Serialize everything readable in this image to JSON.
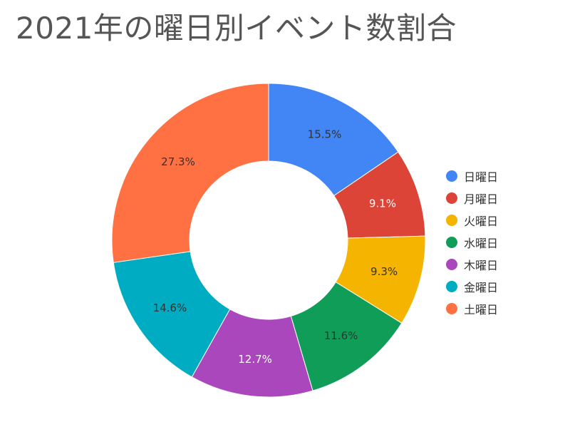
{
  "chart_data": {
    "type": "pie",
    "title": "2021年の曜日別イベント数割合",
    "categories": [
      "日曜日",
      "月曜日",
      "火曜日",
      "水曜日",
      "木曜日",
      "金曜日",
      "土曜日"
    ],
    "values": [
      15.5,
      9.1,
      9.3,
      11.6,
      12.7,
      14.6,
      27.3
    ],
    "labels": [
      "15.5%",
      "9.1%",
      "9.3%",
      "11.6%",
      "12.7%",
      "14.6%",
      "27.3%"
    ],
    "colors": [
      "#4285f4",
      "#db4437",
      "#f4b400",
      "#0f9d58",
      "#ab47bc",
      "#00acc1",
      "#ff7043"
    ],
    "label_colors": [
      "#333333",
      "#ffffff",
      "#333333",
      "#333333",
      "#ffffff",
      "#333333",
      "#333333"
    ],
    "donut": true,
    "legend_position": "right"
  }
}
